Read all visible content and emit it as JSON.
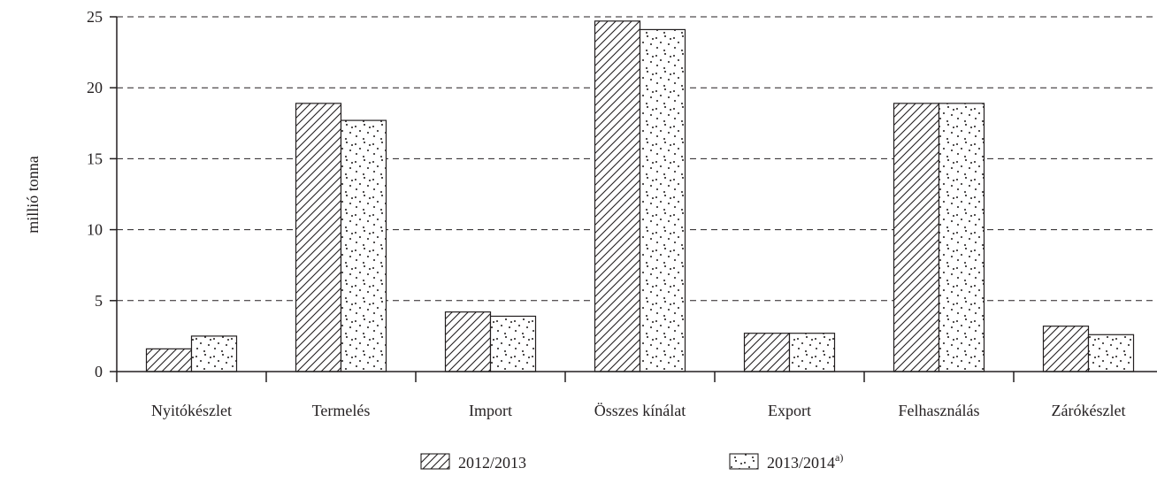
{
  "chart_data": {
    "type": "bar",
    "title": "",
    "xlabel": "",
    "ylabel": "millió tonna",
    "ylim": [
      0,
      25
    ],
    "yticks": [
      0,
      5,
      10,
      15,
      20,
      25
    ],
    "grid": true,
    "legend_position": "bottom",
    "categories": [
      "Nyitókészlet",
      "Termelés",
      "Import",
      "Összes kínálat",
      "Export",
      "Felhasználás",
      "Zárókészlet"
    ],
    "series": [
      {
        "name": "2012/2013",
        "name_sup": "",
        "pattern": "hatch",
        "values": [
          1.6,
          18.9,
          4.2,
          24.7,
          2.7,
          18.9,
          3.2
        ]
      },
      {
        "name": "2013/2014",
        "name_sup": "a)",
        "pattern": "dots",
        "values": [
          2.5,
          17.7,
          3.9,
          24.1,
          2.7,
          18.9,
          2.6
        ]
      }
    ],
    "colors": {
      "ink": "#231f20",
      "background": "#ffffff"
    }
  }
}
